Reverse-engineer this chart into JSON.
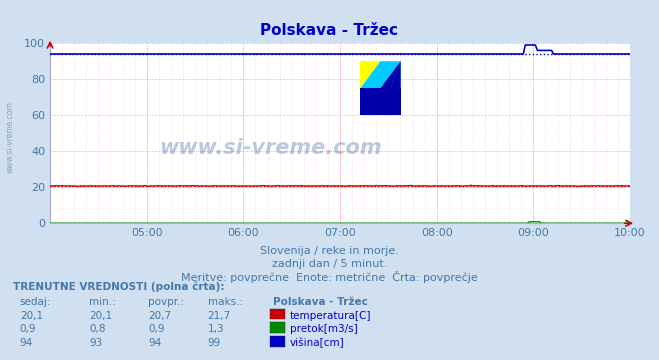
{
  "title": "Polskava - Tržec",
  "bg_color": "#d0e0f0",
  "plot_bg_color": "#ffffff",
  "xlim_min": 0,
  "xlim_max": 288,
  "ylim_min": 0,
  "ylim_max": 100,
  "yticks": [
    0,
    20,
    40,
    60,
    80,
    100
  ],
  "xtick_labels": [
    "05:00",
    "06:00",
    "07:00",
    "08:00",
    "09:00",
    "10:00"
  ],
  "xtick_positions": [
    48,
    96,
    144,
    192,
    240,
    288
  ],
  "text_color": "#4477aa",
  "title_color": "#0000cc",
  "subtitle1": "Slovenija / reke in morje.",
  "subtitle2": "zadnji dan / 5 minut.",
  "subtitle3": "Meritve: povprečne  Enote: metrične  Črta: povprečje",
  "table_header": "TRENUTNE VREDNOSTI (polna črta):",
  "col_sedaj": "sedaj:",
  "col_min": "min.:",
  "col_povpr": "povpr.:",
  "col_maks": "maks.:",
  "col_station": "Polskava - Tržec",
  "temp_color": "#cc0000",
  "flow_color": "#008800",
  "height_color": "#0000cc",
  "watermark_text": "www.si-vreme.com",
  "temp_sedaj": "20,1",
  "temp_min_s": "20,1",
  "temp_povpr": "20,7",
  "temp_maks": "21,7",
  "flow_sedaj": "0,9",
  "flow_min_s": "0,8",
  "flow_povpr": "0,9",
  "flow_maks": "1,3",
  "height_sedaj": "94",
  "height_min_s": "93",
  "height_povpr": "94",
  "height_maks": "99",
  "temp_avg": 20.7,
  "height_avg": 94.0,
  "flow_avg": 0.9
}
